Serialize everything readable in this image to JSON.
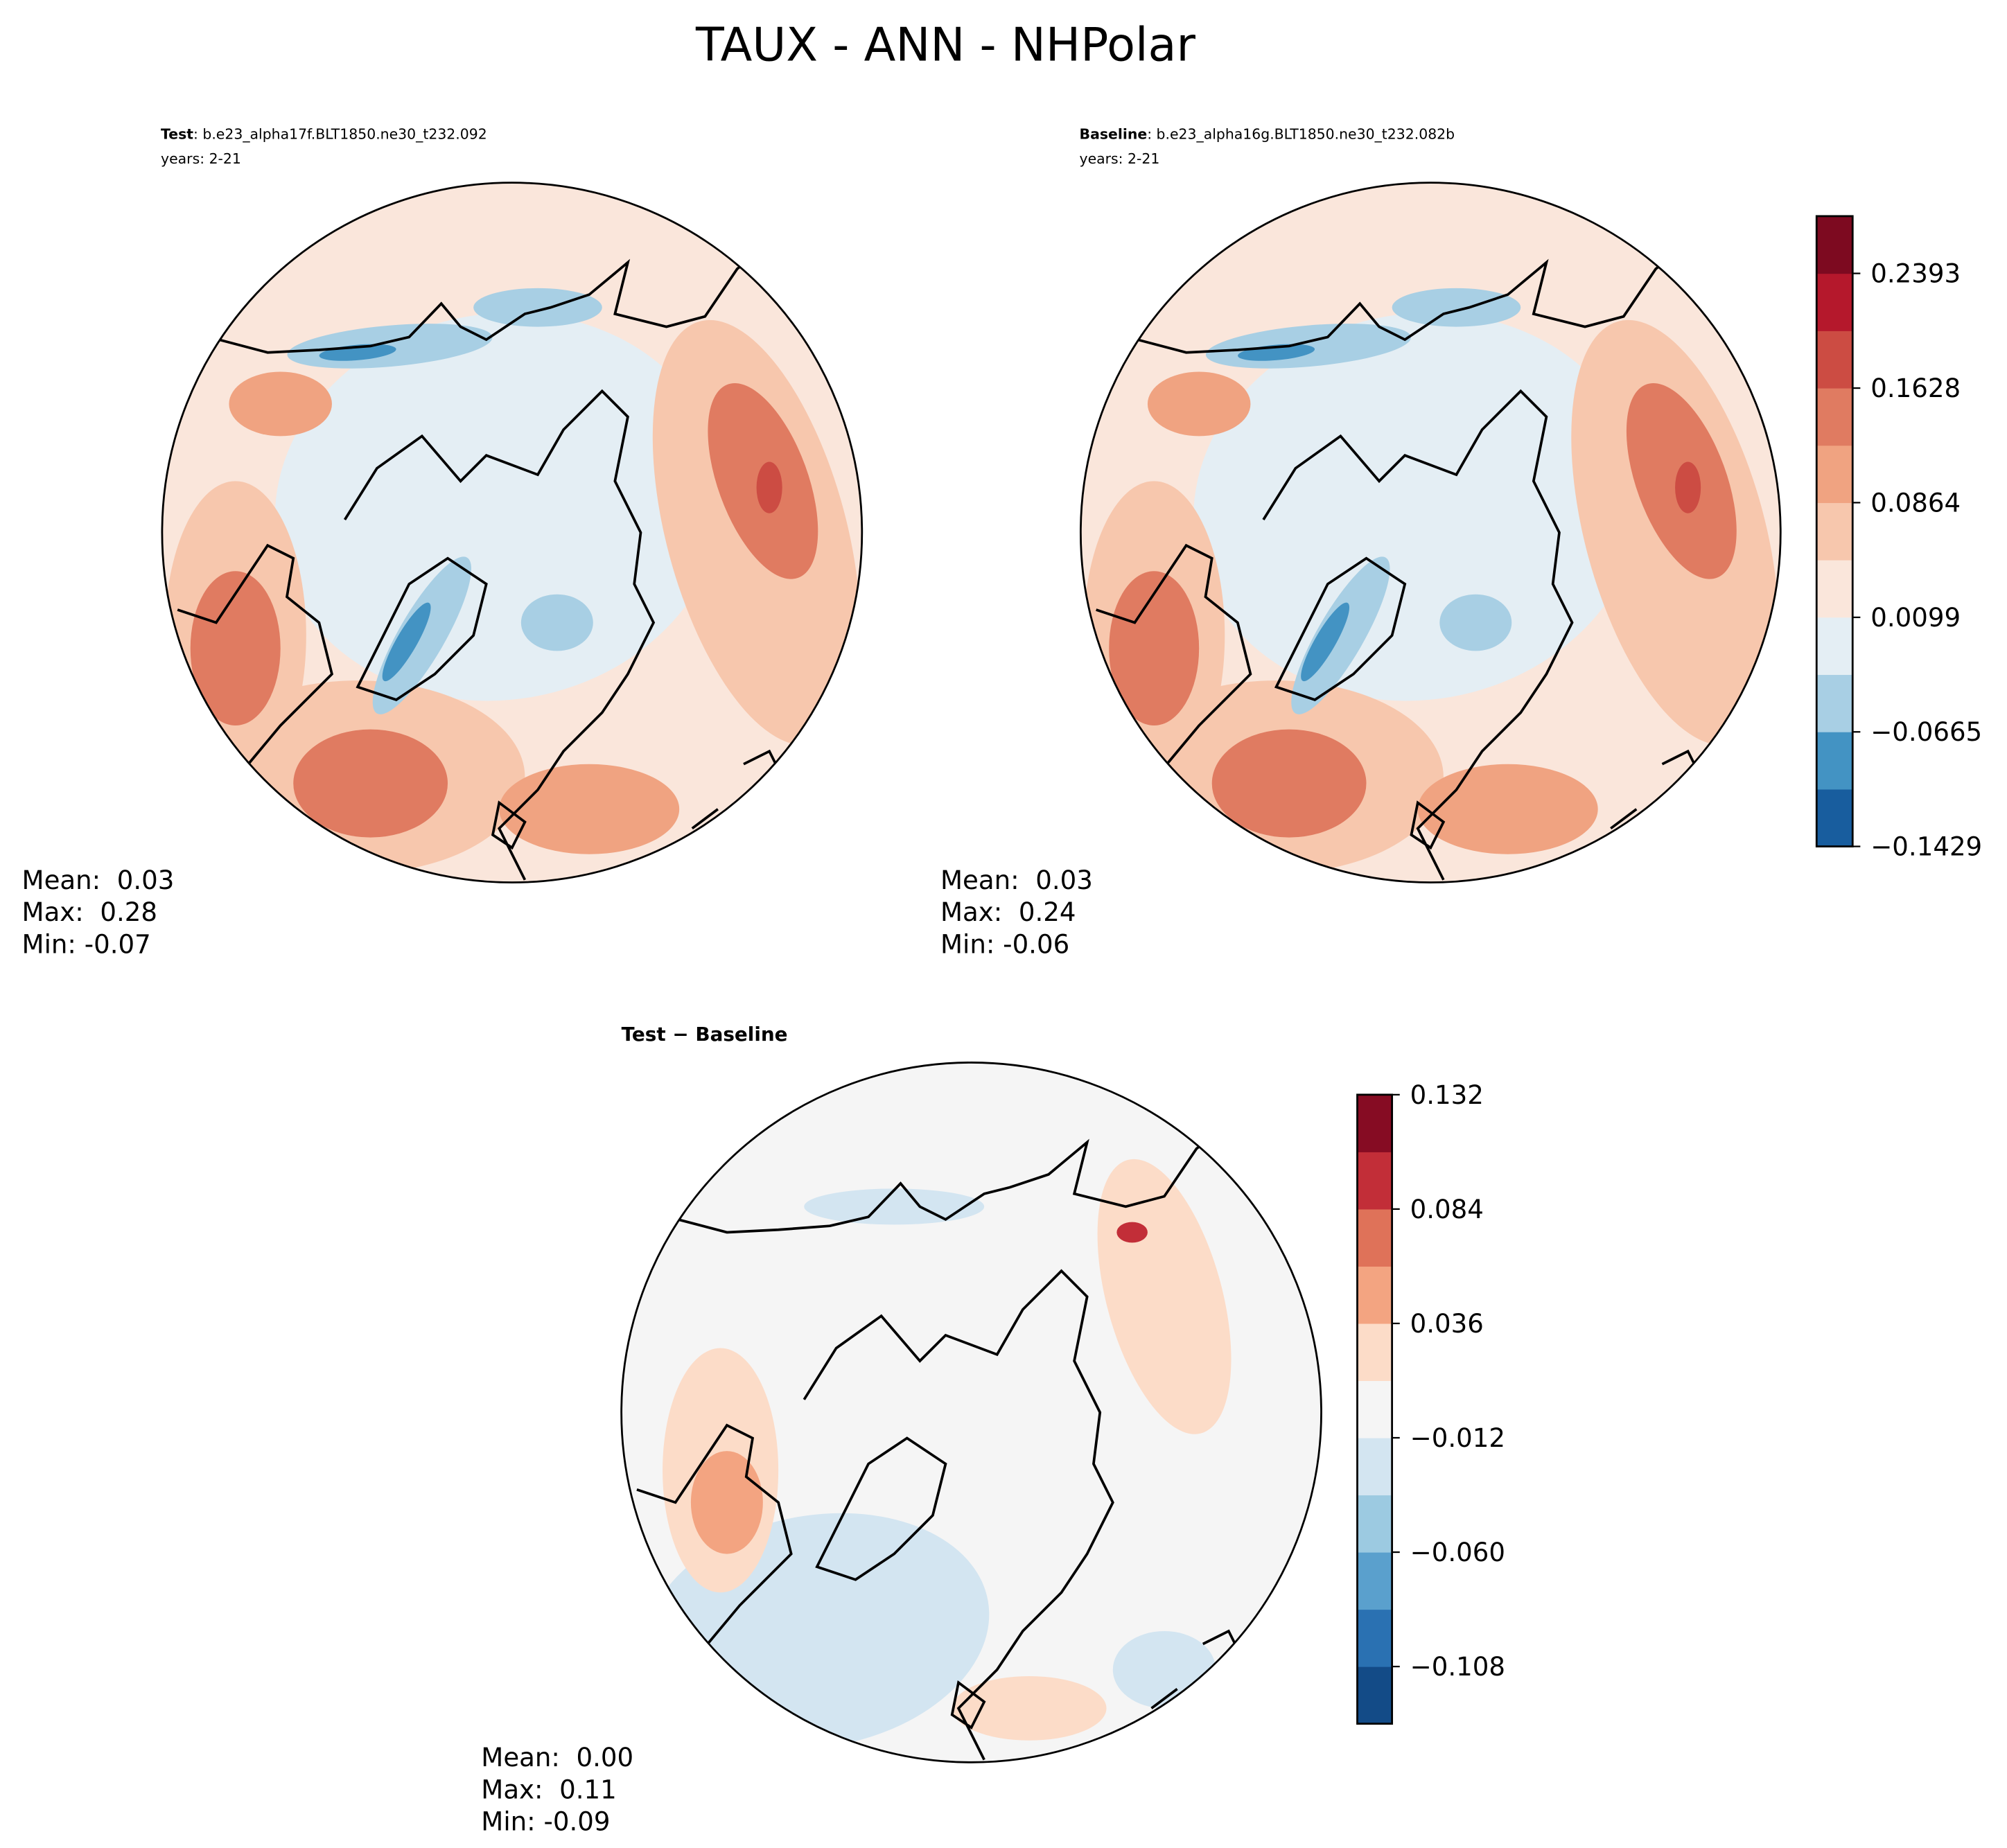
{
  "title": "TAUX - ANN - NHPolar",
  "panels": [
    {
      "label": "Test",
      "case": ": b.e23_alpha17f.BLT1850.ne30_t232.092",
      "years": "years: 2-21",
      "stats": [
        "Mean:  0.03",
        "Max:  0.28",
        "Min: -0.07"
      ]
    },
    {
      "label": "Baseline",
      "case": ": b.e23_alpha16g.BLT1850.ne30_t232.082b",
      "years": "years: 2-21",
      "stats": [
        "Mean:  0.03",
        "Max:  0.24",
        "Min: -0.06"
      ]
    },
    {
      "label": "Test − Baseline",
      "stats": [
        "Mean:  0.00",
        "Max:  0.11",
        "Min: -0.09"
      ]
    }
  ],
  "colorbars": [
    {
      "lim": [
        -0.1429,
        0.2775
      ],
      "colors": [
        "#185d9e",
        "#4393c3",
        "#a8cfe4",
        "#e4eef4",
        "#fae6db",
        "#f7c7ad",
        "#f0a381",
        "#e07b61",
        "#cc4c43",
        "#b5182c",
        "#7d0a20"
      ],
      "ticks": [
        {
          "value": -0.1429,
          "label": "−0.1429"
        },
        {
          "value": -0.0665,
          "label": "−0.0665"
        },
        0.0099,
        0.0864,
        0.1628,
        0.2393
      ]
    },
    {
      "lim": [
        -0.132,
        0.132
      ],
      "colors": [
        "#134b87",
        "#2a71b2",
        "#5aa0cd",
        "#9ccae1",
        "#d3e5f1",
        "#f5f5f5",
        "#fcdcc8",
        "#f3a481",
        "#df7259",
        "#c22e38",
        "#860c23"
      ],
      "ticks": [
        {
          "value": -0.108,
          "label": "−0.108"
        },
        {
          "value": -0.06,
          "label": "−0.060"
        },
        {
          "value": -0.012,
          "label": "−0.012"
        },
        0.036,
        0.084,
        0.132
      ]
    }
  ]
}
